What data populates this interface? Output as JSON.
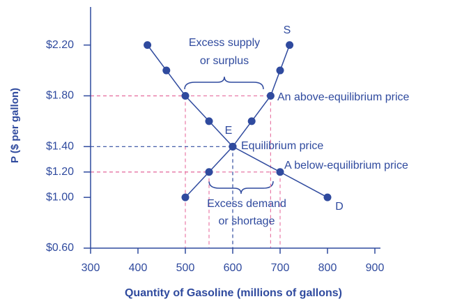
{
  "chart_data": {
    "type": "line",
    "xlabel": "Quantity of Gasoline (millions of gallons)",
    "ylabel": "P ($ per gallon)",
    "xlim": [
      300,
      900
    ],
    "xticks": [
      300,
      400,
      500,
      600,
      700,
      800,
      900
    ],
    "ylim": [
      0.6,
      2.5
    ],
    "yticks": [
      {
        "value": 0.6,
        "label": "$0.60"
      },
      {
        "value": 1.0,
        "label": "$1.00"
      },
      {
        "value": 1.2,
        "label": "$1.20"
      },
      {
        "value": 1.4,
        "label": "$1.40"
      },
      {
        "value": 1.8,
        "label": "$1.80"
      },
      {
        "value": 2.2,
        "label": "$2.20"
      }
    ],
    "series": [
      {
        "name": "D",
        "color": "#2f4a9e",
        "x": [
          420,
          460,
          500,
          550,
          600,
          700,
          800
        ],
        "values": [
          2.2,
          2.0,
          1.8,
          1.6,
          1.4,
          1.2,
          1.0
        ]
      },
      {
        "name": "S",
        "color": "#2f4a9e",
        "x": [
          500,
          550,
          600,
          640,
          680,
          700,
          720
        ],
        "values": [
          1.0,
          1.2,
          1.4,
          1.6,
          1.8,
          2.0,
          2.2
        ]
      }
    ],
    "annotations": [
      "Excess supply",
      "or surplus",
      "An above-equilibrium price",
      "E",
      "Equilibrium price",
      "A below-equilibrium price",
      "Excess demand",
      "or shortage"
    ]
  }
}
